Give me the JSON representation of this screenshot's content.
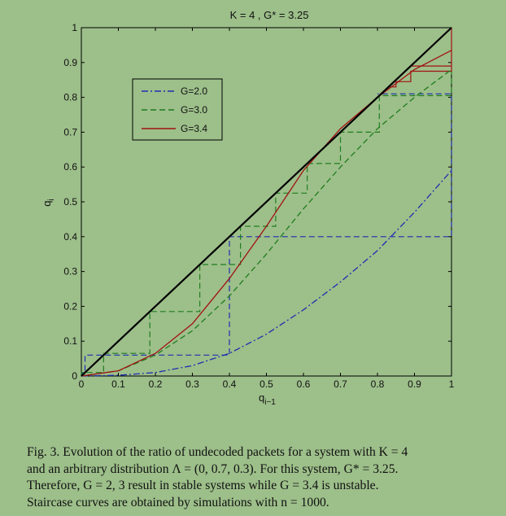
{
  "chart_data": {
    "type": "line",
    "title": "K = 4 , G* = 3.25",
    "xlabel": "q",
    "xlabel_sub": "i−1",
    "ylabel": "q",
    "ylabel_sub": "i",
    "xlim": [
      0,
      1
    ],
    "ylim": [
      0,
      1
    ],
    "xticks": [
      "0",
      "0.1",
      "0.2",
      "0.3",
      "0.4",
      "0.5",
      "0.6",
      "0.7",
      "0.8",
      "0.9",
      "1"
    ],
    "yticks": [
      "0",
      "0.1",
      "0.2",
      "0.3",
      "0.4",
      "0.5",
      "0.6",
      "0.7",
      "0.8",
      "0.9",
      "1"
    ],
    "grid": false,
    "legend_position": "top-left",
    "colors": {
      "identity": "#000000",
      "g2": "#1f2fb0",
      "g3": "#1e7d1e",
      "g34": "#a01212"
    },
    "identity": {
      "x": [
        0,
        1
      ],
      "y": [
        0,
        1
      ]
    },
    "series": [
      {
        "name": "G=2.0",
        "style": "dashdot",
        "color": "#1f2fb0",
        "x": [
          0,
          0.1,
          0.2,
          0.3,
          0.4,
          0.5,
          0.6,
          0.7,
          0.8,
          0.9,
          1.0
        ],
        "y": [
          0,
          0.002,
          0.01,
          0.03,
          0.065,
          0.12,
          0.19,
          0.27,
          0.36,
          0.47,
          0.59
        ]
      },
      {
        "name": "G=3.0",
        "style": "dashed",
        "color": "#1e7d1e",
        "x": [
          0,
          0.1,
          0.2,
          0.3,
          0.4,
          0.5,
          0.6,
          0.7,
          0.8,
          0.9,
          1.0
        ],
        "y": [
          0,
          0.015,
          0.06,
          0.13,
          0.23,
          0.35,
          0.48,
          0.6,
          0.71,
          0.8,
          0.88
        ]
      },
      {
        "name": "G=3.4",
        "style": "solid",
        "color": "#a01212",
        "x": [
          0,
          0.1,
          0.2,
          0.3,
          0.4,
          0.5,
          0.6,
          0.7,
          0.8,
          0.9,
          1.0
        ],
        "y": [
          0,
          0.015,
          0.065,
          0.15,
          0.28,
          0.43,
          0.59,
          0.71,
          0.8,
          0.88,
          0.935
        ]
      }
    ],
    "staircases": [
      {
        "series": "G=2.0",
        "style": "dashed",
        "color": "#1f2fb0",
        "points": [
          [
            0,
            0
          ],
          [
            0,
            0.002
          ],
          [
            0.002,
            0.002
          ],
          [
            0.002,
            0.01
          ],
          [
            0.01,
            0.01
          ],
          [
            0.01,
            0.06
          ],
          [
            0.4,
            0.06
          ],
          [
            0.4,
            0.4
          ],
          [
            1.0,
            0.4
          ],
          [
            1.0,
            0.81
          ],
          [
            0.8,
            0.81
          ]
        ]
      },
      {
        "series": "G=3.0",
        "style": "dashed",
        "color": "#1e7d1e",
        "points": [
          [
            0,
            0
          ],
          [
            0,
            0.01
          ],
          [
            0.06,
            0.01
          ],
          [
            0.06,
            0.065
          ],
          [
            0.185,
            0.065
          ],
          [
            0.185,
            0.185
          ],
          [
            0.32,
            0.185
          ],
          [
            0.32,
            0.32
          ],
          [
            0.43,
            0.32
          ],
          [
            0.43,
            0.43
          ],
          [
            0.525,
            0.43
          ],
          [
            0.525,
            0.525
          ],
          [
            0.61,
            0.525
          ],
          [
            0.61,
            0.61
          ],
          [
            0.7,
            0.61
          ],
          [
            0.7,
            0.7
          ],
          [
            0.805,
            0.7
          ],
          [
            0.805,
            0.805
          ],
          [
            1.0,
            0.805
          ],
          [
            1.0,
            0.875
          ]
        ]
      },
      {
        "series": "G=3.4",
        "style": "solid",
        "color": "#a01212",
        "points": [
          [
            0.83,
            0.83
          ],
          [
            0.85,
            0.83
          ],
          [
            0.85,
            0.845
          ],
          [
            0.89,
            0.845
          ],
          [
            0.89,
            0.875
          ],
          [
            1.0,
            0.875
          ],
          [
            1.0,
            0.89
          ],
          [
            0.89,
            0.89
          ],
          [
            1.0,
            0.89
          ],
          [
            1.0,
            1.0
          ]
        ]
      }
    ]
  },
  "caption": {
    "lines": [
      "Fig. 3.   Evolution of the ratio of undecoded packets for a system with K = 4",
      "and an arbitrary distribution Λ = (0, 0.7, 0.3). For this system, G* = 3.25.",
      "Therefore, G = 2, 3 result in stable systems while G = 3.4 is unstable.",
      "Staircase curves are obtained by simulations with n = 1000."
    ]
  }
}
